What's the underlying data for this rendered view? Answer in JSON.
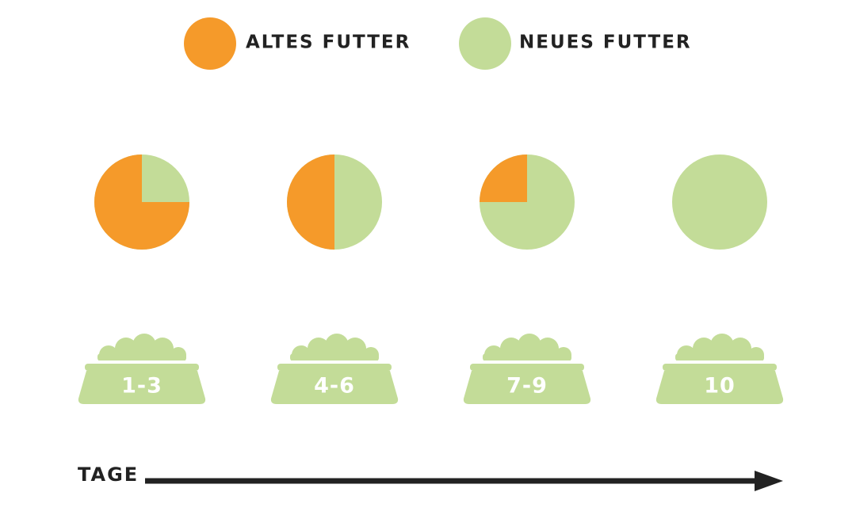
{
  "legend": {
    "old_label": "ALTES FUTTER",
    "new_label": "NEUES FUTTER"
  },
  "colors": {
    "old_food": "#F59A2A",
    "new_food": "#C3DC98",
    "bowl_text": "#FFFFFF",
    "dark": "#222222"
  },
  "chart_data": {
    "type": "pie",
    "xlabel": "TAGE",
    "series_names": [
      "ALTES FUTTER",
      "NEUES FUTTER"
    ],
    "stages": [
      {
        "days": "1-3",
        "old_share": 0.75,
        "new_share": 0.25
      },
      {
        "days": "4-6",
        "old_share": 0.5,
        "new_share": 0.5
      },
      {
        "days": "7-9",
        "old_share": 0.25,
        "new_share": 0.75
      },
      {
        "days": "10",
        "old_share": 0.0,
        "new_share": 1.0
      }
    ]
  },
  "axis": {
    "label": "TAGE",
    "arrow_icon": "arrow-right-icon"
  }
}
